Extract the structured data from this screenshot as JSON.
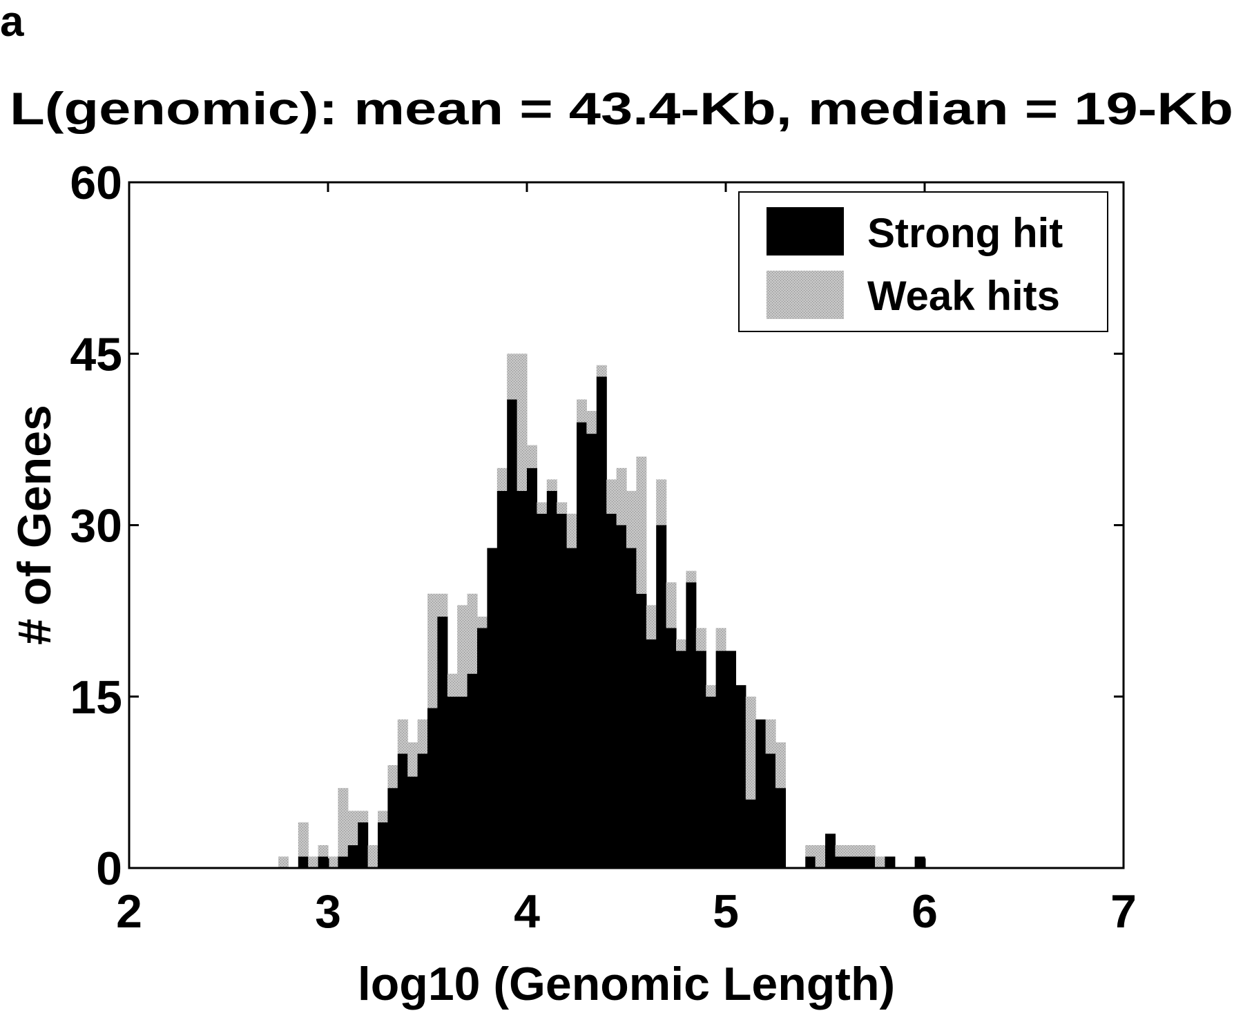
{
  "panel_label": "a",
  "chart_data": {
    "type": "bar",
    "stacked": true,
    "title": "L(genomic): mean = 43.4-Kb, median = 19-Kb",
    "xlabel": "log10 (Genomic Length)",
    "ylabel": "# of Genes",
    "xlim": [
      2,
      7
    ],
    "ylim": [
      0,
      60
    ],
    "xticks": [
      "2",
      "3",
      "4",
      "5",
      "6",
      "7"
    ],
    "yticks": [
      "0",
      "15",
      "30",
      "45",
      "60"
    ],
    "bin_width": 0.05,
    "x": [
      2.775,
      2.825,
      2.875,
      2.925,
      2.975,
      3.025,
      3.075,
      3.125,
      3.175,
      3.225,
      3.275,
      3.325,
      3.375,
      3.425,
      3.475,
      3.525,
      3.575,
      3.625,
      3.675,
      3.725,
      3.775,
      3.825,
      3.875,
      3.925,
      3.975,
      4.025,
      4.075,
      4.125,
      4.175,
      4.225,
      4.275,
      4.325,
      4.375,
      4.425,
      4.475,
      4.525,
      4.575,
      4.625,
      4.675,
      4.725,
      4.775,
      4.825,
      4.875,
      4.925,
      4.975,
      5.025,
      5.075,
      5.125,
      5.175,
      5.225,
      5.275,
      5.325,
      5.375,
      5.425,
      5.475,
      5.525,
      5.575,
      5.625,
      5.675,
      5.725,
      5.775,
      5.825,
      5.875,
      5.925,
      5.975
    ],
    "series": [
      {
        "name": "Strong hit",
        "color": "#000000",
        "values": [
          0,
          0,
          1,
          0,
          1,
          0,
          1,
          2,
          4,
          0,
          4,
          7,
          10,
          8,
          10,
          14,
          22,
          15,
          15,
          17,
          21,
          28,
          33,
          41,
          33,
          35,
          31,
          33,
          31,
          28,
          39,
          38,
          43,
          31,
          30,
          28,
          24,
          20,
          30,
          21,
          19,
          25,
          19,
          15,
          19,
          19,
          16,
          6,
          13,
          10,
          7,
          0,
          0,
          1,
          0,
          3,
          1,
          1,
          1,
          1,
          0,
          1,
          0,
          0,
          1
        ]
      },
      {
        "name": "Weak hits",
        "color": "#c8c8c8",
        "values": [
          1,
          0,
          3,
          1,
          1,
          1,
          6,
          3,
          1,
          2,
          1,
          2,
          3,
          3,
          3,
          10,
          2,
          2,
          8,
          7,
          1,
          0,
          2,
          4,
          12,
          2,
          1,
          1,
          1,
          3,
          2,
          2,
          1,
          3,
          5,
          5,
          12,
          3,
          4,
          4,
          1,
          1,
          2,
          1,
          2,
          0,
          0,
          9,
          0,
          3,
          4,
          0,
          0,
          1,
          2,
          0,
          1,
          1,
          1,
          1,
          1,
          0,
          0,
          0,
          0
        ]
      }
    ],
    "legend_position": "top-right",
    "grid": false
  }
}
